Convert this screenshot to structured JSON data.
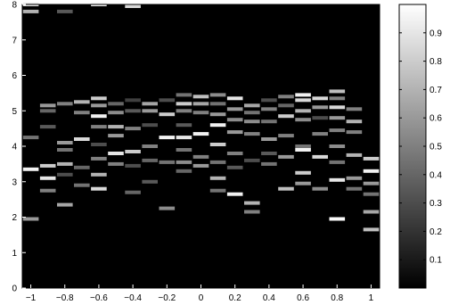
{
  "chart_data": {
    "type": "heatmap",
    "x_ticks": [
      "−1",
      "−0.8",
      "−0.6",
      "−0.4",
      "−0.2",
      "0",
      "0.2",
      "0.4",
      "0.6",
      "0.8",
      "1"
    ],
    "y_ticks": [
      "0",
      "1",
      "2",
      "3",
      "4",
      "5",
      "6",
      "7",
      "8"
    ],
    "colorbar_ticks": [
      "0.1",
      "0.2",
      "0.3",
      "0.4",
      "0.5",
      "0.6",
      "0.7",
      "0.8",
      "0.9"
    ],
    "xlim": [
      -1.05,
      1.05
    ],
    "ylim": [
      0,
      8
    ],
    "clim": [
      0,
      1
    ],
    "colormap": "gray",
    "background": "#000000",
    "x_columns": [
      -1.0,
      -0.9,
      -0.8,
      -0.7,
      -0.6,
      -0.5,
      -0.4,
      -0.3,
      -0.2,
      -0.1,
      0.0,
      0.1,
      0.2,
      0.3,
      0.4,
      0.5,
      0.6,
      0.7,
      0.8,
      0.9,
      1.0
    ],
    "cells": [
      [
        -1.0,
        8.0,
        0.9
      ],
      [
        -1.0,
        7.8,
        0.7
      ],
      [
        -1.0,
        4.25,
        0.45
      ],
      [
        -1.0,
        3.35,
        0.95
      ],
      [
        -1.0,
        1.95,
        0.6
      ],
      [
        -0.9,
        5.15,
        0.6
      ],
      [
        -0.9,
        5.0,
        0.4
      ],
      [
        -0.9,
        4.55,
        0.35
      ],
      [
        -0.9,
        3.45,
        0.8
      ],
      [
        -0.9,
        3.1,
        0.9
      ],
      [
        -0.9,
        2.75,
        0.5
      ],
      [
        -0.8,
        7.8,
        0.35
      ],
      [
        -0.8,
        5.2,
        0.5
      ],
      [
        -0.8,
        4.1,
        0.6
      ],
      [
        -0.8,
        3.9,
        0.45
      ],
      [
        -0.8,
        3.5,
        0.7
      ],
      [
        -0.8,
        3.2,
        0.3
      ],
      [
        -0.8,
        2.35,
        0.65
      ],
      [
        -0.7,
        5.25,
        0.7
      ],
      [
        -0.7,
        4.95,
        0.5
      ],
      [
        -0.7,
        4.2,
        0.85
      ],
      [
        -0.7,
        3.4,
        0.4
      ],
      [
        -0.7,
        2.9,
        0.45
      ],
      [
        -0.6,
        8.0,
        0.95
      ],
      [
        -0.6,
        5.35,
        0.8
      ],
      [
        -0.6,
        5.15,
        0.6
      ],
      [
        -0.6,
        4.85,
        0.95
      ],
      [
        -0.6,
        4.55,
        0.5
      ],
      [
        -0.6,
        4.05,
        0.3
      ],
      [
        -0.6,
        3.65,
        0.5
      ],
      [
        -0.6,
        3.2,
        0.7
      ],
      [
        -0.6,
        2.8,
        0.85
      ],
      [
        -0.5,
        5.2,
        0.4
      ],
      [
        -0.5,
        4.95,
        0.55
      ],
      [
        -0.5,
        4.55,
        0.7
      ],
      [
        -0.5,
        4.3,
        0.6
      ],
      [
        -0.5,
        3.8,
        0.9
      ],
      [
        -0.5,
        3.5,
        0.5
      ],
      [
        -0.4,
        7.95,
        0.85
      ],
      [
        -0.4,
        5.3,
        0.25
      ],
      [
        -0.4,
        5.0,
        0.35
      ],
      [
        -0.4,
        4.5,
        0.5
      ],
      [
        -0.4,
        3.85,
        0.8
      ],
      [
        -0.4,
        3.45,
        0.3
      ],
      [
        -0.4,
        2.7,
        0.4
      ],
      [
        -0.3,
        5.2,
        0.65
      ],
      [
        -0.3,
        5.0,
        0.6
      ],
      [
        -0.3,
        4.6,
        0.3
      ],
      [
        -0.3,
        4.0,
        0.5
      ],
      [
        -0.3,
        3.6,
        0.4
      ],
      [
        -0.3,
        3.0,
        0.35
      ],
      [
        -0.2,
        5.3,
        0.3
      ],
      [
        -0.2,
        4.9,
        0.8
      ],
      [
        -0.2,
        4.25,
        0.95
      ],
      [
        -0.2,
        3.55,
        0.45
      ],
      [
        -0.2,
        2.25,
        0.55
      ],
      [
        -0.1,
        5.45,
        0.45
      ],
      [
        -0.1,
        5.2,
        0.8
      ],
      [
        -0.1,
        5.0,
        0.5
      ],
      [
        -0.1,
        4.6,
        0.35
      ],
      [
        -0.1,
        4.25,
        0.9
      ],
      [
        -0.1,
        3.9,
        0.45
      ],
      [
        -0.1,
        3.55,
        0.55
      ],
      [
        -0.1,
        3.3,
        0.4
      ],
      [
        0.0,
        5.4,
        0.75
      ],
      [
        0.0,
        5.2,
        0.65
      ],
      [
        0.0,
        4.95,
        0.5
      ],
      [
        0.0,
        4.35,
        0.95
      ],
      [
        0.0,
        3.7,
        0.5
      ],
      [
        0.0,
        3.45,
        0.6
      ],
      [
        0.1,
        5.45,
        0.55
      ],
      [
        0.1,
        5.2,
        0.45
      ],
      [
        0.1,
        4.9,
        0.6
      ],
      [
        0.1,
        4.6,
        0.95
      ],
      [
        0.1,
        4.05,
        0.8
      ],
      [
        0.1,
        3.55,
        0.45
      ],
      [
        0.1,
        3.1,
        0.7
      ],
      [
        0.1,
        2.75,
        0.45
      ],
      [
        0.2,
        5.35,
        0.9
      ],
      [
        0.2,
        5.05,
        0.6
      ],
      [
        0.2,
        4.75,
        0.55
      ],
      [
        0.2,
        4.4,
        0.6
      ],
      [
        0.2,
        3.8,
        0.5
      ],
      [
        0.2,
        3.4,
        0.35
      ],
      [
        0.2,
        2.65,
        0.95
      ],
      [
        0.3,
        5.15,
        0.65
      ],
      [
        0.3,
        4.95,
        0.45
      ],
      [
        0.3,
        4.7,
        0.55
      ],
      [
        0.3,
        4.35,
        0.5
      ],
      [
        0.3,
        3.6,
        0.3
      ],
      [
        0.3,
        2.4,
        0.7
      ],
      [
        0.3,
        2.15,
        0.5
      ],
      [
        0.4,
        5.3,
        0.3
      ],
      [
        0.4,
        5.05,
        0.5
      ],
      [
        0.4,
        4.7,
        0.45
      ],
      [
        0.4,
        4.2,
        0.6
      ],
      [
        0.4,
        3.8,
        0.35
      ],
      [
        0.4,
        3.5,
        0.45
      ],
      [
        0.5,
        5.4,
        0.5
      ],
      [
        0.5,
        5.15,
        0.4
      ],
      [
        0.5,
        4.85,
        0.8
      ],
      [
        0.5,
        4.3,
        0.5
      ],
      [
        0.5,
        3.7,
        0.6
      ],
      [
        0.5,
        2.8,
        0.75
      ],
      [
        0.6,
        5.45,
        0.95
      ],
      [
        0.6,
        5.3,
        0.85
      ],
      [
        0.6,
        5.0,
        0.7
      ],
      [
        0.6,
        4.75,
        0.55
      ],
      [
        0.6,
        4.0,
        0.45
      ],
      [
        0.6,
        3.9,
        0.95
      ],
      [
        0.6,
        3.25,
        0.8
      ],
      [
        0.6,
        2.95,
        0.6
      ],
      [
        0.7,
        5.35,
        0.85
      ],
      [
        0.7,
        5.1,
        0.6
      ],
      [
        0.7,
        4.8,
        0.3
      ],
      [
        0.7,
        4.35,
        0.5
      ],
      [
        0.7,
        3.7,
        0.85
      ],
      [
        0.7,
        2.8,
        0.55
      ],
      [
        0.8,
        5.55,
        0.75
      ],
      [
        0.8,
        5.35,
        0.5
      ],
      [
        0.8,
        5.1,
        0.85
      ],
      [
        0.8,
        4.8,
        0.6
      ],
      [
        0.8,
        4.45,
        0.5
      ],
      [
        0.8,
        4.0,
        0.55
      ],
      [
        0.8,
        3.55,
        0.45
      ],
      [
        0.8,
        3.05,
        0.9
      ],
      [
        0.8,
        1.95,
        0.98
      ],
      [
        0.9,
        5.05,
        0.5
      ],
      [
        0.9,
        4.7,
        0.7
      ],
      [
        0.9,
        4.4,
        0.5
      ],
      [
        0.9,
        3.75,
        0.7
      ],
      [
        0.9,
        3.1,
        0.6
      ],
      [
        0.9,
        2.8,
        0.45
      ],
      [
        1.0,
        3.65,
        0.8
      ],
      [
        1.0,
        3.3,
        0.95
      ],
      [
        1.0,
        2.95,
        0.6
      ],
      [
        1.0,
        2.65,
        0.45
      ],
      [
        1.0,
        2.15,
        0.65
      ],
      [
        1.0,
        1.65,
        0.75
      ]
    ]
  }
}
